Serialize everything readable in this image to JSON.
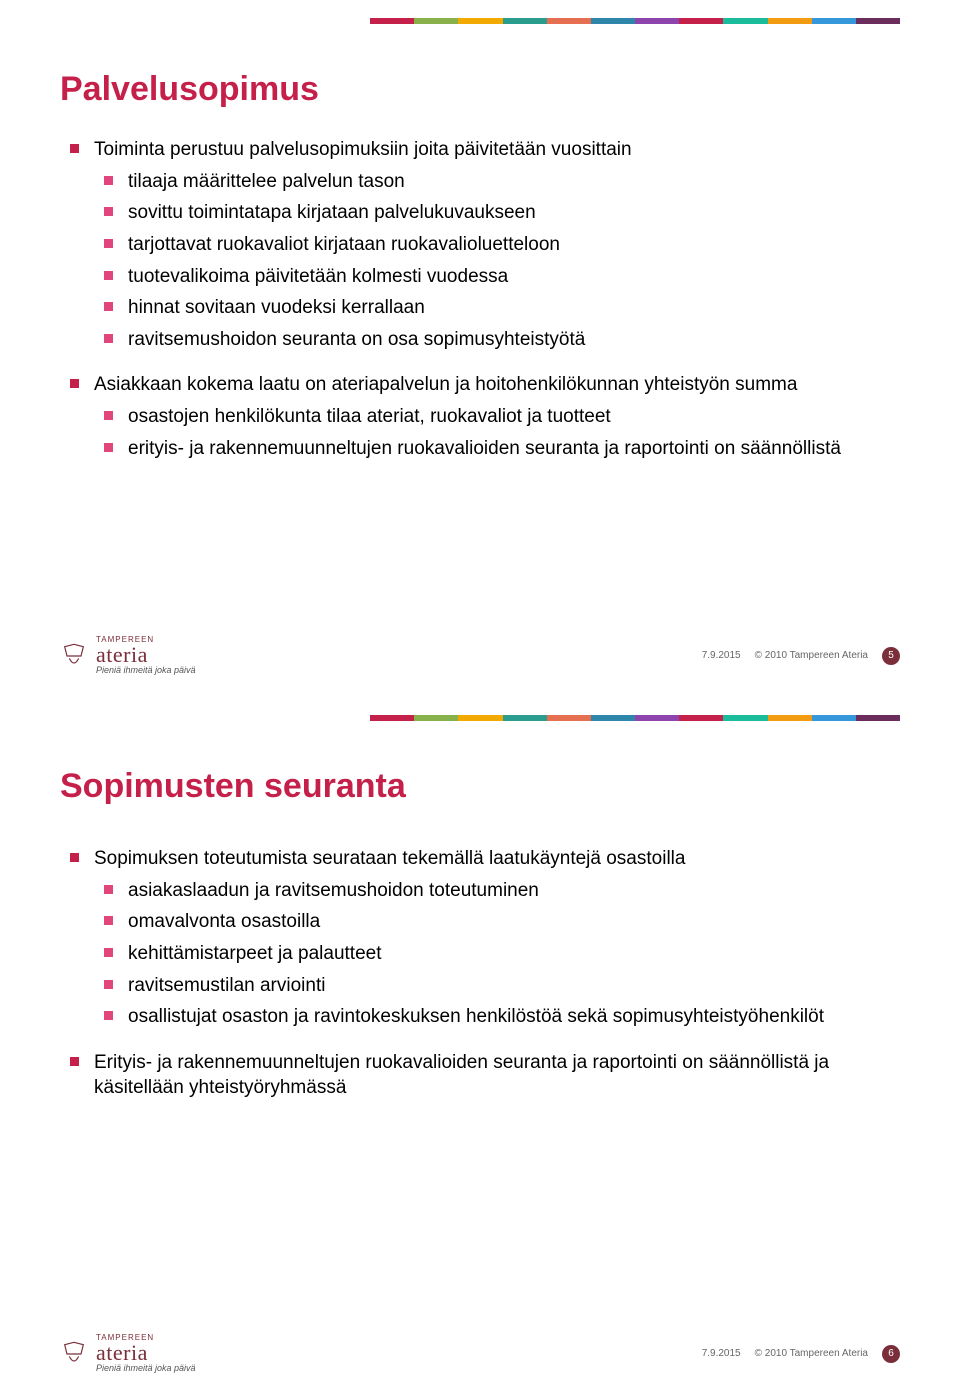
{
  "color_bar_colors": [
    "#c5204a",
    "#88b04b",
    "#f2a900",
    "#2a9d8f",
    "#e76f51",
    "#2e86ab",
    "#8e44ad",
    "#c5204a",
    "#1abc9c",
    "#f39c12",
    "#3498db",
    "#6b2d5c"
  ],
  "title_color": "#c5204a",
  "slide1": {
    "title": "Palvelusopimus",
    "items": [
      {
        "text": "Toiminta perustuu palvelusopimuksiin joita päivitetään vuosittain",
        "sub": [
          {
            "text": "tilaaja määrittelee palvelun tason"
          },
          {
            "text": "sovittu toimintatapa kirjataan palvelukuvaukseen"
          },
          {
            "text": "tarjottavat ruokavaliot kirjataan ruokavalioluetteloon"
          },
          {
            "text": "tuotevalikoima päivitetään kolmesti vuodessa"
          },
          {
            "text": "hinnat sovitaan vuodeksi kerrallaan"
          },
          {
            "text": "ravitsemushoidon seuranta on osa sopimusyhteistyötä"
          }
        ]
      },
      {
        "text": "Asiakkaan kokema laatu on ateriapalvelun ja hoitohenkilökunnan yhteistyön summa",
        "sub": [
          {
            "text": "osastojen henkilökunta tilaa ateriat, ruokavaliot ja tuotteet"
          },
          {
            "text": "erityis- ja rakennemuunneltujen ruokavalioiden seuranta ja raportointi on säännöllistä"
          }
        ]
      }
    ]
  },
  "slide2": {
    "title": "Sopimusten seuranta",
    "items": [
      {
        "text": "Sopimuksen toteutumista seurataan tekemällä laatukäyntejä osastoilla",
        "sub": [
          {
            "text": "asiakaslaadun ja  ravitsemushoidon toteutuminen"
          },
          {
            "text": "omavalvonta osastoilla"
          },
          {
            "text": "kehittämistarpeet ja palautteet"
          },
          {
            "text": "ravitsemustilan arviointi"
          },
          {
            "text": "osallistujat osaston ja ravintokeskuksen henkilöstöä sekä sopimusyhteistyöhenkilöt"
          }
        ]
      },
      {
        "text": "Erityis- ja rakennemuunneltujen ruokavalioiden seuranta ja raportointi on säännöllistä ja käsitellään yhteistyöryhmässä",
        "sub": []
      }
    ]
  },
  "footer": {
    "logo_upper": "TAMPEREEN",
    "logo_brand": "ateria",
    "logo_tagline": "Pieniä ihmeitä joka päivä",
    "date": "7.9.2015",
    "copyright": "© 2010 Tampereen Ateria",
    "page1": "5",
    "page2": "6",
    "logo_color": "#7a2e3a",
    "circle_color": "#7a2e3a"
  }
}
